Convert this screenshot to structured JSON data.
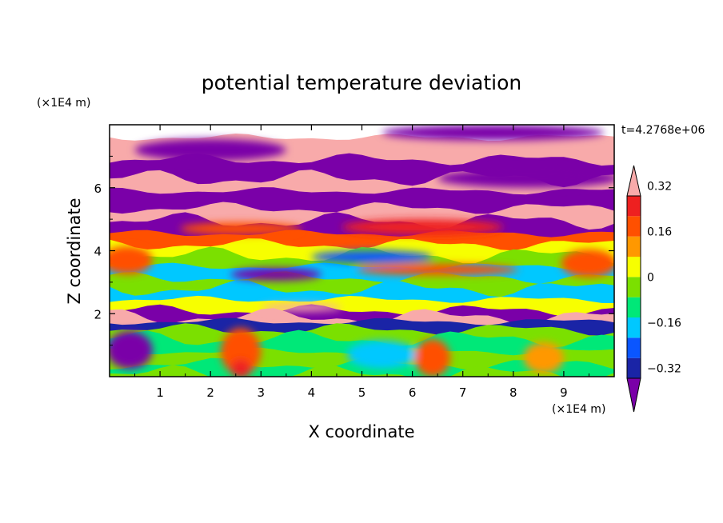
{
  "chart_data": {
    "type": "heatmap",
    "title": "potential temperature deviation",
    "xlabel": "X coordinate",
    "ylabel": "Z coordinate",
    "x_unit_label": "(×1E4 m)",
    "y_unit_label": "(×1E4 m)",
    "time_label": "t=4.2768e+06",
    "xlim": [
      0,
      10
    ],
    "ylim": [
      0,
      8
    ],
    "x_ticks": [
      "1",
      "2",
      "3",
      "4",
      "5",
      "6",
      "7",
      "8",
      "9"
    ],
    "y_ticks": [
      "2",
      "4",
      "6"
    ],
    "colorbar": {
      "tick_labels": [
        "0.32",
        "0.16",
        "0",
        "−0.16",
        "−0.32"
      ],
      "tick_values": [
        0.32,
        0.16,
        0,
        -0.16,
        -0.32
      ],
      "levels": [
        -0.4,
        -0.32,
        -0.24,
        -0.16,
        -0.08,
        0,
        0.08,
        0.16,
        0.24,
        0.32,
        0.4
      ],
      "colors": [
        "#7a00a8",
        "#1a24a6",
        "#0a56ff",
        "#00c8ff",
        "#00e878",
        "#7be000",
        "#f7ff00",
        "#ff9800",
        "#ff5000",
        "#ee2020",
        "#f8aaaa"
      ],
      "extend": "both"
    },
    "bands": [
      {
        "z": 7.6,
        "value": 0.45
      },
      {
        "z": 6.9,
        "value": -0.45
      },
      {
        "z": 6.3,
        "value": 0.45
      },
      {
        "z": 5.9,
        "value": -0.45
      },
      {
        "z": 5.35,
        "value": 0.45
      },
      {
        "z": 4.95,
        "value": -0.45
      },
      {
        "z": 4.55,
        "value": 0.26
      },
      {
        "z": 4.2,
        "value": 0.1
      },
      {
        "z": 3.85,
        "value": 0.02
      },
      {
        "z": 3.5,
        "value": -0.1
      },
      {
        "z": 3.15,
        "value": 0.06
      },
      {
        "z": 2.8,
        "value": -0.12
      },
      {
        "z": 2.45,
        "value": 0.1
      },
      {
        "z": 2.1,
        "value": -0.45
      },
      {
        "z": 1.9,
        "value": 0.45
      },
      {
        "z": 1.75,
        "value": -0.3
      },
      {
        "z": 1.5,
        "value": 0.05
      },
      {
        "z": 1.2,
        "value": -0.05
      },
      {
        "z": 0.8,
        "value": 0.06
      },
      {
        "z": 0.4,
        "value": -0.02
      },
      {
        "z": 0.1,
        "value": 0.05
      }
    ],
    "features": [
      {
        "x": 0.4,
        "z": 0.85,
        "rx": 0.45,
        "rz": 0.6,
        "value": -0.35
      },
      {
        "x": 0.45,
        "z": 0.85,
        "rx": 0.25,
        "rz": 0.35,
        "value": -0.45
      },
      {
        "x": 2.6,
        "z": 0.8,
        "rx": 0.4,
        "rz": 0.75,
        "value": 0.3
      },
      {
        "x": 2.6,
        "z": 0.25,
        "rx": 0.2,
        "rz": 0.3,
        "value": 0.35
      },
      {
        "x": 5.4,
        "z": 0.7,
        "rx": 0.7,
        "rz": 0.45,
        "value": -0.12
      },
      {
        "x": 6.4,
        "z": 0.6,
        "rx": 0.35,
        "rz": 0.6,
        "value": 0.26
      },
      {
        "x": 8.6,
        "z": 0.6,
        "rx": 0.4,
        "rz": 0.5,
        "value": 0.2
      },
      {
        "x": 0.35,
        "z": 3.7,
        "rx": 0.5,
        "rz": 0.45,
        "value": 0.3
      },
      {
        "x": 9.5,
        "z": 3.6,
        "rx": 0.55,
        "rz": 0.45,
        "value": 0.3
      },
      {
        "x": 5.2,
        "z": 3.8,
        "rx": 1.2,
        "rz": 0.2,
        "value": -0.22
      },
      {
        "x": 3.3,
        "z": 3.25,
        "rx": 0.9,
        "rz": 0.2,
        "value": -0.42
      },
      {
        "x": 6.5,
        "z": 3.4,
        "rx": 1.6,
        "rz": 0.18,
        "value": 0.3
      },
      {
        "x": 6.2,
        "z": 4.75,
        "rx": 1.6,
        "rz": 0.25,
        "value": 0.33
      },
      {
        "x": 2.6,
        "z": 4.7,
        "rx": 1.2,
        "rz": 0.2,
        "value": 0.3
      },
      {
        "x": 8.3,
        "z": 6.3,
        "rx": 1.8,
        "rz": 0.3,
        "value": -0.45
      },
      {
        "x": 2.0,
        "z": 7.2,
        "rx": 1.5,
        "rz": 0.35,
        "value": -0.45
      },
      {
        "x": 7.6,
        "z": 7.75,
        "rx": 2.2,
        "rz": 0.25,
        "value": -0.45
      },
      {
        "x": 3.8,
        "z": 2.2,
        "rx": 0.8,
        "rz": 0.12,
        "value": 0.45
      }
    ]
  }
}
